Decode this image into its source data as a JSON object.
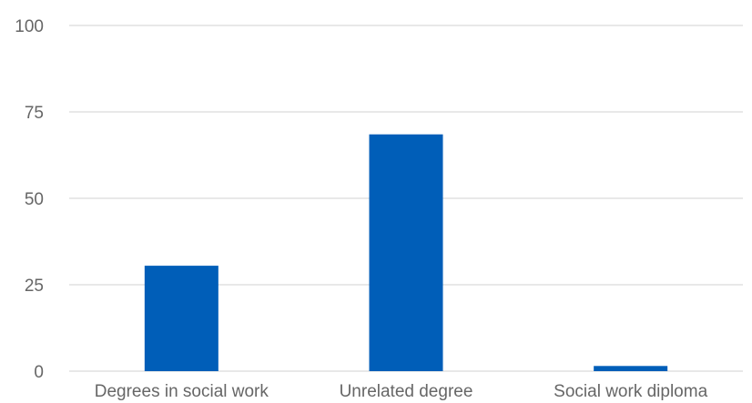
{
  "chart_data": {
    "type": "bar",
    "title": "",
    "xlabel": "",
    "ylabel": "",
    "categories": [
      "Degrees in social work",
      "Unrelated degree",
      "Social work diploma"
    ],
    "values": [
      30.5,
      68.5,
      1.5
    ],
    "ylim": [
      0,
      100
    ],
    "yticks": [
      0,
      25,
      50,
      75,
      100
    ],
    "grid": true,
    "legend": "none",
    "bar_color": "#005EB8",
    "grid_color": "#D9D9D9",
    "text_color": "#666666"
  }
}
